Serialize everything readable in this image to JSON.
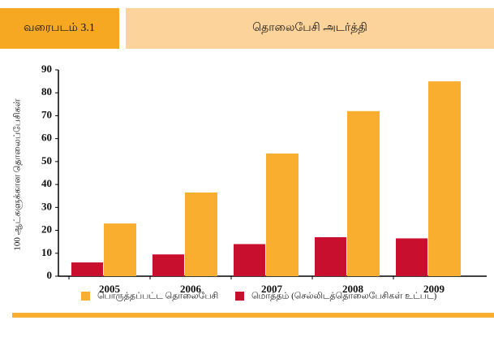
{
  "header": {
    "figure_label": "வரைபடம் 3.1",
    "title": "தொலைபேசி அடர்த்தி"
  },
  "chart_data": {
    "type": "bar",
    "y_label": "100 ஆட்களுக்கான தொலைப்பேசிகள்",
    "categories": [
      "2005",
      "2006",
      "2007",
      "2008",
      "2009"
    ],
    "series": [
      {
        "name": "மொத்தம் (செல்லிடத்தொலைபேசிகள் உட்பட)",
        "color": "#c8102e",
        "values": [
          6,
          9.5,
          14,
          17,
          16.5
        ]
      },
      {
        "name": "பொருத்தப்பட்ட தொலைபேசி",
        "color": "#f9ae2f",
        "values": [
          23,
          36.5,
          53.5,
          72,
          85
        ]
      }
    ],
    "legend_order": [
      1,
      0
    ],
    "ylim": [
      0,
      90
    ],
    "yticks": [
      0,
      10,
      20,
      30,
      40,
      50,
      60,
      70,
      80,
      90
    ]
  }
}
